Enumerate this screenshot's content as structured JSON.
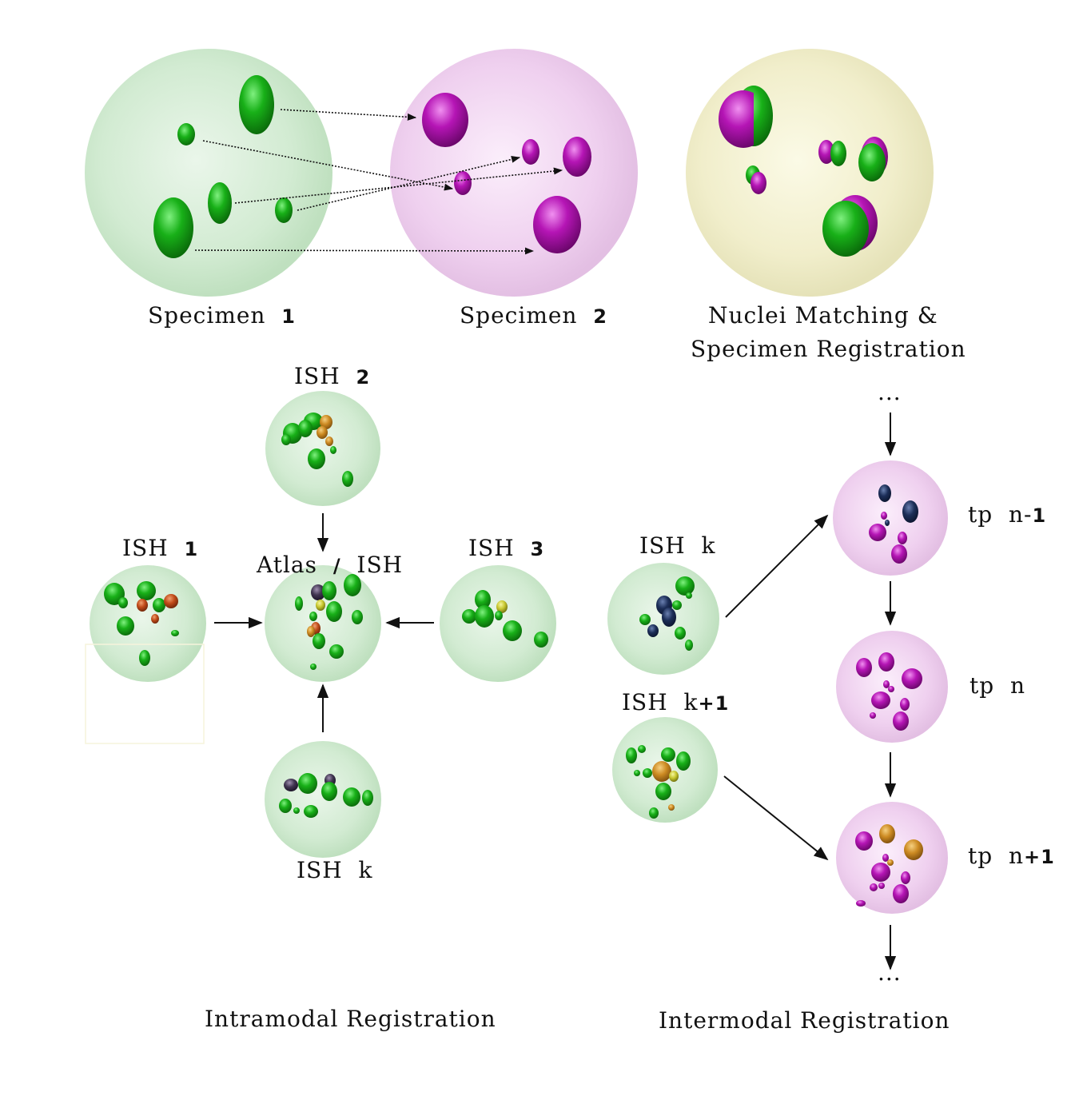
{
  "top": {
    "specimen1": {
      "name": "Specimen",
      "num": "1"
    },
    "specimen2": {
      "name": "Specimen",
      "num": "2"
    },
    "matching_line1": "Nuclei Matching &",
    "matching_line2": "Specimen Registration"
  },
  "intramodal": {
    "title": "Intramodal Registration",
    "ish2": {
      "name": "ISH",
      "num": "2"
    },
    "ish1": {
      "name": "ISH",
      "num": "1"
    },
    "ish3": {
      "name": "ISH",
      "num": "3"
    },
    "ishk": {
      "name": "ISH",
      "suffix": "k"
    },
    "atlas": {
      "left": "Atlas",
      "sep": "/",
      "right": "ISH"
    }
  },
  "intermodal": {
    "title": "Intermodal Registration",
    "ishk": {
      "name": "ISH",
      "suffix": "k"
    },
    "ishk1": {
      "name": "ISH",
      "suffix": "k",
      "plus": "+1"
    },
    "dots_top": "...",
    "dots_bottom": "...",
    "tp_prev": {
      "name": "tp",
      "n": "n-",
      "one": "1"
    },
    "tp_cur": {
      "name": "tp",
      "n": "n"
    },
    "tp_next": {
      "name": "tp",
      "n": "n",
      "plus": "+1"
    }
  },
  "colors": {
    "green_sphere": "#cfe9cf",
    "pink_sphere": "#efcdef",
    "yellow_sphere": "#f3f0cc",
    "nucleus_green": "#15a015",
    "nucleus_magenta": "#b010b0",
    "nucleus_navy": "#1a2a55",
    "nucleus_orange": "#d08a20"
  }
}
